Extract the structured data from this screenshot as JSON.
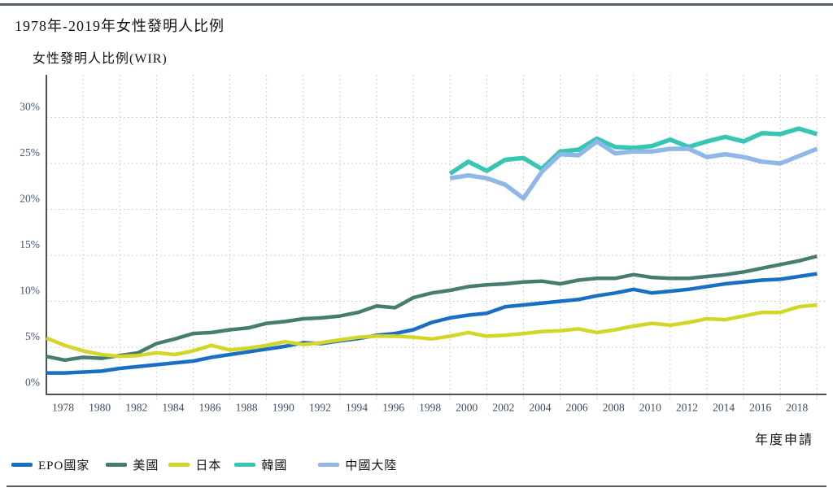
{
  "page": {
    "title": "1978年-2019年女性發明人比例",
    "y_axis_title": "女性發明人比例(WIR)",
    "x_axis_title": "年度申請"
  },
  "legend": {
    "items": [
      {
        "label": "EPO國家",
        "color": "#1a6fc4"
      },
      {
        "label": "美國",
        "color": "#467d72"
      },
      {
        "label": "日本",
        "color": "#d3d626"
      },
      {
        "label": "韓國",
        "color": "#38c6b4"
      },
      {
        "label": "中國大陸",
        "color": "#8fb8e8"
      }
    ]
  },
  "chart_data": {
    "type": "line",
    "title": "1978年-2019年女性發明人比例",
    "xlabel": "年度申請",
    "ylabel": "女性發明人比例(WIR)",
    "xlim": [
      1977,
      2019.25
    ],
    "ylim": [
      0,
      34.65
    ],
    "grid": true,
    "legend_position": "bottom",
    "x_label_years": [
      1978,
      1980,
      1982,
      1984,
      1986,
      1988,
      1990,
      1992,
      1994,
      1996,
      1998,
      2000,
      2002,
      2004,
      2006,
      2008,
      2010,
      2012,
      2014,
      2016,
      2018
    ],
    "x_grid_years": [
      1979,
      1981,
      1983,
      1985,
      1987,
      1989,
      1991,
      1993,
      1995,
      1997,
      1999,
      2001,
      2003,
      2005,
      2007,
      2009,
      2011,
      2013,
      2015,
      2017,
      2019
    ],
    "y_tick_values": [
      0,
      5,
      10,
      15,
      20,
      25,
      30
    ],
    "y_tick_labels": [
      "0%",
      "5%",
      "10%",
      "15%",
      "20%",
      "25%",
      "30%"
    ],
    "series": [
      {
        "name": "EPO國家",
        "color": "#1a6fc4",
        "width": 4.5,
        "start_year": 1977,
        "values": [
          2.2,
          2.2,
          2.3,
          2.4,
          2.7,
          2.9,
          3.1,
          3.3,
          3.5,
          3.9,
          4.2,
          4.5,
          4.8,
          5.1,
          5.5,
          5.4,
          5.7,
          5.95,
          6.3,
          6.5,
          6.9,
          7.7,
          8.2,
          8.5,
          8.7,
          9.4,
          9.6,
          9.8,
          10.0,
          10.2,
          10.6,
          10.9,
          11.3,
          10.9,
          11.1,
          11.3,
          11.6,
          11.9,
          12.1,
          12.3,
          12.4,
          12.7,
          13.0
        ]
      },
      {
        "name": "美國",
        "color": "#467d72",
        "width": 4.5,
        "start_year": 1977,
        "values": [
          4.0,
          3.6,
          3.9,
          3.8,
          4.1,
          4.4,
          5.4,
          5.9,
          6.5,
          6.6,
          6.9,
          7.1,
          7.6,
          7.8,
          8.1,
          8.2,
          8.4,
          8.8,
          9.5,
          9.3,
          10.4,
          10.9,
          11.2,
          11.6,
          11.8,
          11.9,
          12.1,
          12.2,
          11.9,
          12.3,
          12.5,
          12.5,
          12.9,
          12.6,
          12.5,
          12.5,
          12.7,
          12.9,
          13.2,
          13.6,
          14.0,
          14.4,
          14.9
        ]
      },
      {
        "name": "日本",
        "color": "#d3d626",
        "width": 4.5,
        "start_year": 1977,
        "values": [
          6.0,
          5.2,
          4.6,
          4.2,
          4.0,
          4.1,
          4.4,
          4.2,
          4.6,
          5.2,
          4.7,
          4.9,
          5.2,
          5.6,
          5.3,
          5.5,
          5.8,
          6.1,
          6.2,
          6.2,
          6.1,
          5.9,
          6.2,
          6.6,
          6.2,
          6.3,
          6.5,
          6.7,
          6.8,
          7.0,
          6.6,
          6.9,
          7.3,
          7.6,
          7.4,
          7.7,
          8.1,
          8.0,
          8.4,
          8.8,
          8.8,
          9.4,
          9.6
        ]
      },
      {
        "name": "韓國",
        "color": "#38c6b4",
        "width": 5.5,
        "start_year": 1999,
        "values": [
          23.9,
          25.2,
          24.2,
          25.4,
          25.6,
          24.4,
          26.3,
          26.5,
          27.7,
          26.8,
          26.7,
          26.9,
          27.6,
          26.8,
          27.4,
          27.9,
          27.4,
          28.3,
          28.2,
          28.8,
          28.2
        ]
      },
      {
        "name": "中國大陸",
        "color": "#8fb8e8",
        "width": 5.5,
        "start_year": 1999,
        "values": [
          23.4,
          23.7,
          23.4,
          22.7,
          21.2,
          24.1,
          26.0,
          25.9,
          27.4,
          26.1,
          26.3,
          26.3,
          26.6,
          26.6,
          25.7,
          26.0,
          25.7,
          25.2,
          25.0,
          25.8,
          26.6
        ]
      }
    ]
  }
}
